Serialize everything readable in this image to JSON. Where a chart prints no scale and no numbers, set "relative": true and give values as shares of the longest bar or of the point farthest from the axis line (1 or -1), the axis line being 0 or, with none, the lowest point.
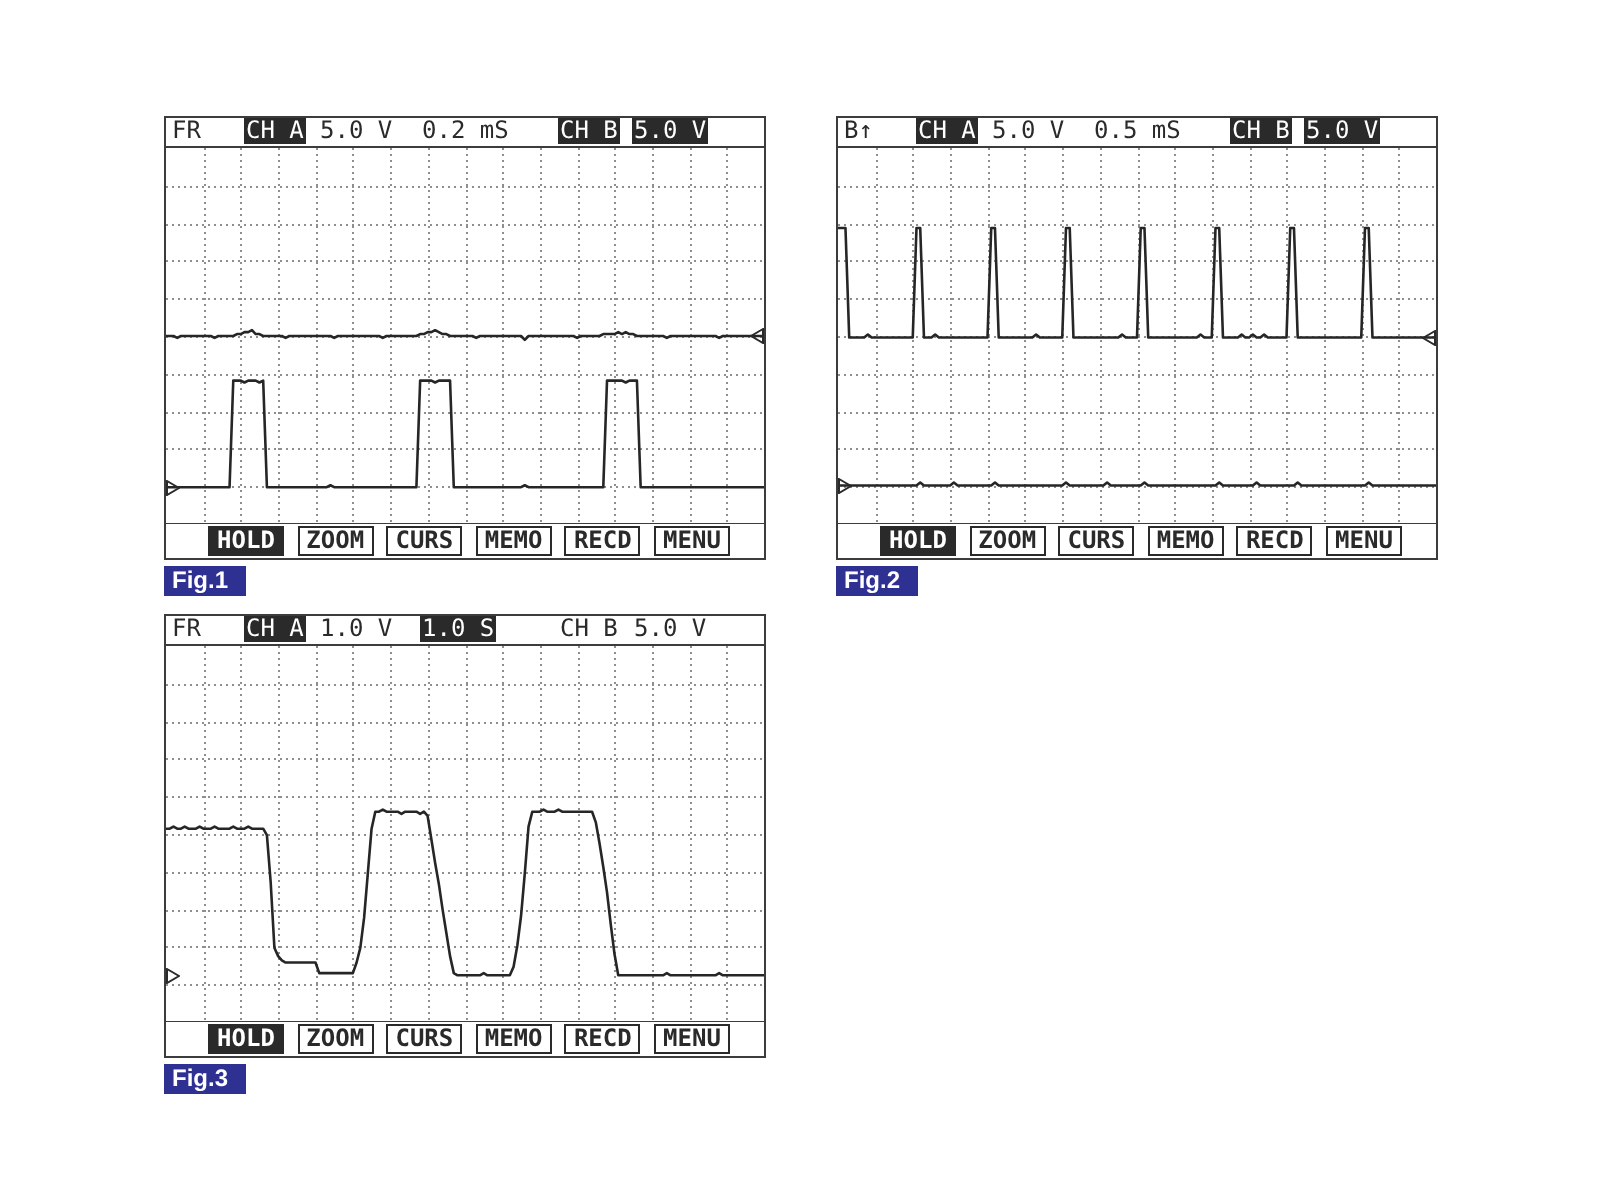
{
  "chart_data": [
    {
      "type": "line",
      "title": "Fig.1",
      "annotations": [
        "FR",
        "CH A",
        "5.0 V",
        "0.2 mS",
        "CH B",
        "5.0 V",
        "HOLD",
        "ZOOM",
        "CURS",
        "MEMO",
        "RECD",
        "MENU"
      ],
      "relative": true,
      "grid": true,
      "categories": [
        null,
        null,
        null,
        null,
        null,
        null,
        null,
        null,
        null,
        null,
        null,
        null,
        null,
        null,
        null,
        null,
        null,
        null,
        null,
        null,
        null,
        null,
        null,
        null,
        null,
        null,
        null,
        null,
        null,
        null,
        null,
        null,
        null,
        null,
        null,
        null,
        null,
        null,
        null,
        null,
        null,
        null,
        null,
        null,
        null,
        null,
        null,
        null,
        null,
        null,
        null,
        null,
        null,
        null,
        null,
        null,
        null,
        null,
        null,
        null,
        null,
        null,
        null,
        null,
        null,
        null,
        null,
        null,
        null,
        null,
        null,
        null,
        null,
        null,
        null,
        null,
        null,
        null,
        null,
        null,
        null,
        null,
        null,
        null,
        null,
        null,
        null,
        null,
        null,
        null,
        null,
        null,
        null,
        null,
        null,
        null,
        null,
        null,
        null,
        null,
        null,
        null,
        null,
        null,
        null,
        null,
        null,
        null,
        null,
        null,
        null,
        null,
        null,
        null,
        null,
        null,
        null,
        null,
        null,
        null,
        null,
        null,
        null,
        null,
        null,
        null,
        null,
        null,
        null,
        null,
        null,
        null,
        null,
        null,
        null,
        null,
        null,
        null,
        null,
        null,
        null,
        null,
        null,
        null,
        null,
        null,
        null,
        null,
        null,
        null,
        null,
        null,
        null,
        null,
        null,
        null,
        null,
        null,
        null,
        null,
        null
      ],
      "series": [
        {
          "color": "#262626",
          "values": [
            0.97,
            0.97,
            0.97,
            0.96,
            0.97,
            0.97,
            0.97,
            0.97,
            0.97,
            0.97,
            0.97,
            0.97,
            0.97,
            0.96,
            0.97,
            0.97,
            0.97,
            0.97,
            0.97,
            0.98,
            0.98,
            0.99,
            0.99,
            1,
            0.98,
            0.98,
            0.97,
            0.97,
            0.97,
            0.97,
            0.97,
            0.97,
            0.96,
            0.97,
            0.97,
            0.97,
            0.97,
            0.97,
            0.97,
            0.97,
            0.97,
            0.97,
            0.97,
            0.97,
            0.97,
            0.96,
            0.97,
            0.97,
            0.97,
            0.97,
            0.97,
            0.97,
            0.97,
            0.97,
            0.97,
            0.97,
            0.97,
            0.97,
            0.96,
            0.97,
            0.97,
            0.97,
            0.97,
            0.97,
            0.97,
            0.97,
            0.97,
            0.97,
            0.98,
            0.98,
            0.99,
            0.99,
            1,
            0.99,
            0.98,
            0.98,
            0.97,
            0.97,
            0.97,
            0.97,
            0.97,
            0.97,
            0.97,
            0.96,
            0.97,
            0.97,
            0.97,
            0.97,
            0.97,
            0.97,
            0.97,
            0.97,
            0.97,
            0.97,
            0.97,
            0.97,
            0.95,
            0.97,
            0.97,
            0.97,
            0.97,
            0.97,
            0.97,
            0.97,
            0.97,
            0.97,
            0.97,
            0.97,
            0.97,
            0.97,
            0.96,
            0.97,
            0.97,
            0.97,
            0.97,
            0.97,
            0.97,
            0.98,
            0.98,
            0.98,
            0.98,
            0.99,
            0.98,
            0.99,
            0.98,
            0.98,
            0.97,
            0.97,
            0.97,
            0.97,
            0.97,
            0.97,
            0.97,
            0.97,
            0.96,
            0.97,
            0.97,
            0.97,
            0.97,
            0.97,
            0.97,
            0.97,
            0.97,
            0.97,
            0.97,
            0.97,
            0.97,
            0.97,
            0.96,
            0.97,
            0.97,
            0.97,
            0.97,
            0.97,
            0.97,
            0.97,
            0.97,
            0.97,
            0.97,
            0.97,
            0.97
          ]
        },
        {
          "color": "#262626",
          "values": [
            0.19,
            0.19,
            0.19,
            0.19,
            0.19,
            0.19,
            0.19,
            0.19,
            0.19,
            0.19,
            0.19,
            0.19,
            0.19,
            0.19,
            0.19,
            0.19,
            0.19,
            0.19,
            0.74,
            0.74,
            0.74,
            0.73,
            0.74,
            0.74,
            0.74,
            0.73,
            0.74,
            0.19,
            0.19,
            0.19,
            0.19,
            0.19,
            0.19,
            0.19,
            0.19,
            0.19,
            0.19,
            0.19,
            0.19,
            0.19,
            0.19,
            0.19,
            0.19,
            0.19,
            0.2,
            0.19,
            0.19,
            0.19,
            0.19,
            0.19,
            0.19,
            0.19,
            0.19,
            0.19,
            0.19,
            0.19,
            0.19,
            0.19,
            0.19,
            0.19,
            0.19,
            0.19,
            0.19,
            0.19,
            0.19,
            0.19,
            0.19,
            0.19,
            0.74,
            0.74,
            0.74,
            0.74,
            0.73,
            0.74,
            0.74,
            0.74,
            0.74,
            0.19,
            0.19,
            0.19,
            0.19,
            0.19,
            0.19,
            0.19,
            0.19,
            0.19,
            0.19,
            0.19,
            0.19,
            0.19,
            0.19,
            0.19,
            0.19,
            0.19,
            0.19,
            0.19,
            0.2,
            0.19,
            0.19,
            0.19,
            0.19,
            0.19,
            0.19,
            0.19,
            0.19,
            0.19,
            0.19,
            0.19,
            0.19,
            0.19,
            0.19,
            0.19,
            0.19,
            0.19,
            0.19,
            0.19,
            0.19,
            0.19,
            0.74,
            0.74,
            0.74,
            0.74,
            0.74,
            0.73,
            0.74,
            0.74,
            0.74,
            0.19,
            0.19,
            0.19,
            0.19,
            0.19,
            0.19,
            0.19,
            0.19,
            0.19,
            0.19,
            0.19,
            0.19,
            0.19,
            0.19,
            0.19,
            0.19,
            0.19,
            0.19,
            0.19,
            0.19,
            0.19,
            0.19,
            0.19,
            0.19,
            0.19,
            0.19,
            0.19,
            0.19,
            0.19,
            0.19,
            0.19,
            0.19,
            0.19,
            0.19
          ]
        }
      ]
    },
    {
      "type": "line",
      "title": "Fig.2",
      "annotations": [
        "B↑",
        "CH A",
        "5.0 V",
        "0.5 mS",
        "CH B",
        "5.0 V",
        "HOLD",
        "ZOOM",
        "CURS",
        "MEMO",
        "RECD",
        "MENU"
      ],
      "relative": true,
      "grid": true,
      "categories": [
        null,
        null,
        null,
        null,
        null,
        null,
        null,
        null,
        null,
        null,
        null,
        null,
        null,
        null,
        null,
        null,
        null,
        null,
        null,
        null,
        null,
        null,
        null,
        null,
        null,
        null,
        null,
        null,
        null,
        null,
        null,
        null,
        null,
        null,
        null,
        null,
        null,
        null,
        null,
        null,
        null,
        null,
        null,
        null,
        null,
        null,
        null,
        null,
        null,
        null,
        null,
        null,
        null,
        null,
        null,
        null,
        null,
        null,
        null,
        null,
        null,
        null,
        null,
        null,
        null,
        null,
        null,
        null,
        null,
        null,
        null,
        null,
        null,
        null,
        null,
        null,
        null,
        null,
        null,
        null,
        null,
        null,
        null,
        null,
        null,
        null,
        null,
        null,
        null,
        null,
        null,
        null,
        null,
        null,
        null,
        null,
        null,
        null,
        null,
        null,
        null,
        null,
        null,
        null,
        null,
        null,
        null,
        null,
        null,
        null,
        null,
        null,
        null,
        null,
        null,
        null,
        null,
        null,
        null,
        null,
        null,
        null,
        null,
        null,
        null,
        null,
        null,
        null,
        null,
        null,
        null,
        null,
        null,
        null,
        null,
        null,
        null,
        null,
        null,
        null,
        null,
        null,
        null,
        null,
        null,
        null,
        null,
        null,
        null,
        null,
        null,
        null,
        null,
        null,
        null,
        null,
        null,
        null,
        null,
        null,
        null
      ],
      "series": [
        {
          "color": "#262626",
          "values": [
            1,
            1,
            1,
            0.63,
            0.63,
            0.63,
            0.63,
            0.63,
            0.64,
            0.63,
            0.63,
            0.63,
            0.63,
            0.63,
            0.63,
            0.63,
            0.63,
            0.63,
            0.63,
            0.63,
            0.63,
            1,
            1,
            0.63,
            0.63,
            0.63,
            0.64,
            0.63,
            0.63,
            0.63,
            0.63,
            0.63,
            0.63,
            0.63,
            0.63,
            0.63,
            0.63,
            0.63,
            0.63,
            0.63,
            0.63,
            1,
            1,
            0.63,
            0.63,
            0.63,
            0.63,
            0.63,
            0.63,
            0.63,
            0.63,
            0.63,
            0.63,
            0.64,
            0.63,
            0.63,
            0.63,
            0.63,
            0.63,
            0.63,
            0.63,
            1,
            1,
            0.63,
            0.63,
            0.63,
            0.63,
            0.63,
            0.63,
            0.63,
            0.63,
            0.63,
            0.63,
            0.63,
            0.63,
            0.63,
            0.64,
            0.63,
            0.63,
            0.63,
            0.63,
            1,
            1,
            0.63,
            0.63,
            0.63,
            0.63,
            0.63,
            0.63,
            0.63,
            0.63,
            0.63,
            0.63,
            0.63,
            0.63,
            0.63,
            0.63,
            0.64,
            0.63,
            0.63,
            0.63,
            1,
            1,
            0.63,
            0.63,
            0.63,
            0.63,
            0.63,
            0.64,
            0.63,
            0.63,
            0.64,
            0.63,
            0.63,
            0.64,
            0.63,
            0.63,
            0.63,
            0.63,
            0.63,
            0.63,
            1,
            1,
            0.63,
            0.63,
            0.63,
            0.63,
            0.63,
            0.63,
            0.63,
            0.63,
            0.63,
            0.63,
            0.63,
            0.63,
            0.63,
            0.63,
            0.63,
            0.63,
            0.63,
            0.63,
            1,
            1,
            0.63,
            0.63,
            0.63,
            0.63,
            0.63,
            0.63,
            0.63,
            0.63,
            0.63,
            0.63,
            0.63,
            0.63,
            0.63,
            0.63,
            0.63,
            0.63,
            0.63,
            0.63
          ]
        },
        {
          "color": "#262626",
          "values": [
            0.13,
            0.13,
            0.13,
            0.13,
            0.13,
            0.13,
            0.13,
            0.13,
            0.13,
            0.13,
            0.13,
            0.13,
            0.13,
            0.13,
            0.13,
            0.13,
            0.13,
            0.13,
            0.13,
            0.13,
            0.13,
            0.13,
            0.14,
            0.13,
            0.13,
            0.13,
            0.13,
            0.13,
            0.13,
            0.13,
            0.13,
            0.14,
            0.13,
            0.13,
            0.13,
            0.13,
            0.13,
            0.13,
            0.13,
            0.13,
            0.13,
            0.13,
            0.14,
            0.13,
            0.13,
            0.13,
            0.13,
            0.13,
            0.13,
            0.13,
            0.13,
            0.13,
            0.13,
            0.13,
            0.13,
            0.13,
            0.13,
            0.13,
            0.13,
            0.13,
            0.13,
            0.14,
            0.13,
            0.13,
            0.13,
            0.13,
            0.13,
            0.13,
            0.13,
            0.13,
            0.13,
            0.13,
            0.14,
            0.13,
            0.13,
            0.13,
            0.13,
            0.13,
            0.13,
            0.13,
            0.13,
            0.13,
            0.14,
            0.13,
            0.13,
            0.13,
            0.13,
            0.13,
            0.13,
            0.13,
            0.13,
            0.13,
            0.13,
            0.13,
            0.13,
            0.13,
            0.13,
            0.13,
            0.13,
            0.13,
            0.13,
            0.13,
            0.14,
            0.13,
            0.13,
            0.13,
            0.13,
            0.13,
            0.13,
            0.13,
            0.13,
            0.13,
            0.14,
            0.13,
            0.13,
            0.13,
            0.13,
            0.13,
            0.13,
            0.13,
            0.13,
            0.13,
            0.13,
            0.14,
            0.13,
            0.13,
            0.13,
            0.13,
            0.13,
            0.13,
            0.13,
            0.13,
            0.13,
            0.13,
            0.13,
            0.13,
            0.13,
            0.13,
            0.13,
            0.13,
            0.13,
            0.13,
            0.14,
            0.13,
            0.13,
            0.13,
            0.13,
            0.13,
            0.13,
            0.13,
            0.13,
            0.13,
            0.13,
            0.13,
            0.13,
            0.13,
            0.13,
            0.13,
            0.13,
            0.13,
            0.13
          ]
        }
      ]
    },
    {
      "type": "line",
      "title": "Fig.3",
      "annotations": [
        "FR",
        "CH A",
        "1.0 V",
        "1.0 S",
        "CH B",
        "5.0 V",
        "HOLD",
        "ZOOM",
        "CURS",
        "MEMO",
        "RECD",
        "MENU"
      ],
      "relative": true,
      "grid": true,
      "categories": [
        null,
        null,
        null,
        null,
        null,
        null,
        null,
        null,
        null,
        null,
        null,
        null,
        null,
        null,
        null,
        null,
        null,
        null,
        null,
        null,
        null,
        null,
        null,
        null,
        null,
        null,
        null,
        null,
        null,
        null,
        null,
        null,
        null,
        null,
        null,
        null,
        null,
        null,
        null,
        null,
        null,
        null,
        null,
        null,
        null,
        null,
        null,
        null,
        null,
        null,
        null,
        null,
        null,
        null,
        null,
        null,
        null,
        null,
        null,
        null,
        null,
        null,
        null,
        null,
        null,
        null,
        null,
        null,
        null,
        null,
        null,
        null,
        null,
        null,
        null,
        null,
        null,
        null,
        null,
        null,
        null,
        null,
        null,
        null,
        null,
        null,
        null,
        null,
        null,
        null,
        null,
        null,
        null,
        null,
        null,
        null,
        null,
        null,
        null,
        null,
        null,
        null,
        null,
        null,
        null,
        null,
        null,
        null,
        null,
        null,
        null,
        null,
        null,
        null,
        null,
        null,
        null,
        null,
        null,
        null,
        null,
        null,
        null,
        null,
        null,
        null,
        null,
        null,
        null,
        null,
        null,
        null,
        null,
        null,
        null,
        null,
        null,
        null,
        null,
        null,
        null,
        null,
        null,
        null,
        null,
        null,
        null,
        null,
        null,
        null,
        null,
        null,
        null,
        null,
        null,
        null,
        null,
        null,
        null,
        null,
        null
      ],
      "series": [
        {
          "color": "#262626",
          "values": [
            0.91,
            0.91,
            0.92,
            0.91,
            0.91,
            0.92,
            0.91,
            0.91,
            0.91,
            0.92,
            0.91,
            0.91,
            0.91,
            0.92,
            0.91,
            0.91,
            0.91,
            0.91,
            0.92,
            0.91,
            0.91,
            0.91,
            0.92,
            0.91,
            0.91,
            0.91,
            0.91,
            0.88,
            0.66,
            0.35,
            0.31,
            0.29,
            0.28,
            0.28,
            0.28,
            0.28,
            0.28,
            0.28,
            0.28,
            0.28,
            0.28,
            0.23,
            0.23,
            0.23,
            0.23,
            0.23,
            0.23,
            0.23,
            0.23,
            0.23,
            0.23,
            0.28,
            0.35,
            0.49,
            0.7,
            0.91,
            0.99,
            0.99,
            1,
            0.99,
            0.99,
            0.99,
            0.99,
            0.98,
            0.99,
            0.99,
            0.99,
            0.99,
            0.98,
            0.99,
            0.97,
            0.86,
            0.75,
            0.65,
            0.53,
            0.42,
            0.31,
            0.23,
            0.22,
            0.22,
            0.22,
            0.22,
            0.22,
            0.22,
            0.22,
            0.23,
            0.22,
            0.22,
            0.22,
            0.22,
            0.22,
            0.22,
            0.22,
            0.26,
            0.36,
            0.5,
            0.7,
            0.92,
            0.99,
            0.99,
            0.99,
            1,
            0.99,
            0.99,
            0.99,
            1,
            0.99,
            0.99,
            0.99,
            0.99,
            0.99,
            0.99,
            0.99,
            0.99,
            0.99,
            0.94,
            0.84,
            0.73,
            0.61,
            0.46,
            0.32,
            0.22,
            0.22,
            0.22,
            0.22,
            0.22,
            0.22,
            0.22,
            0.22,
            0.22,
            0.22,
            0.22,
            0.22,
            0.22,
            0.23,
            0.22,
            0.22,
            0.22,
            0.22,
            0.22,
            0.22,
            0.22,
            0.22,
            0.22,
            0.22,
            0.22,
            0.22,
            0.22,
            0.23,
            0.22,
            0.22,
            0.22,
            0.22,
            0.22,
            0.22,
            0.22,
            0.22,
            0.22,
            0.22,
            0.22,
            0.22
          ]
        }
      ]
    }
  ]
}
